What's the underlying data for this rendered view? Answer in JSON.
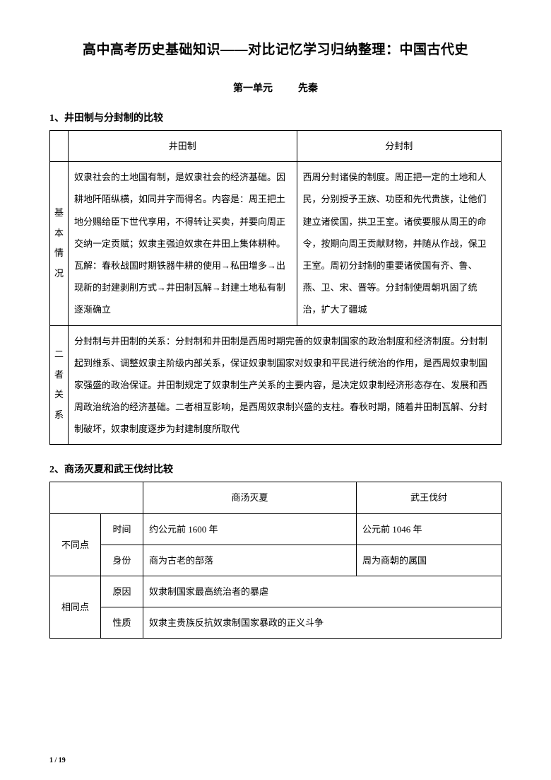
{
  "title": "高中高考历史基础知识——对比记忆学习归纳整理：中国古代史",
  "unit_prefix": "第一单元",
  "unit_name": "先秦",
  "section1": {
    "heading": "1、井田制与分封制的比较",
    "col1": "井田制",
    "col2": "分封制",
    "row1_label": "基本情况",
    "row1_c1": "奴隶社会的土地国有制，是奴隶社会的经济基础。因耕地阡陌纵横，如同井字而得名。内容是：周王把土地分赐给臣下世代享用，不得转让买卖，并要向周正交纳一定贡赋；奴隶主强迫奴隶在井田上集体耕种。瓦解：春秋战国时期铁器牛耕的使用→私田增多→出现新的封建剥削方式→井田制瓦解→封建土地私有制逐渐确立",
    "row1_c2": "西周分封诸侯的制度。周正把一定的土地和人民，分别授予王族、功臣和先代贵族，让他们建立诸侯国，拱卫王室。诸侯要服从周王的命令，按期向周王贡献财物，并随从作战，保卫王室。周初分封制的重要诸侯国有齐、鲁、燕、卫、宋、晋等。分封制使周朝巩固了统治，扩大了疆城",
    "row2_label": "二者关系",
    "row2_text": "分封制与井田制的关系：分封制和井田制是西周时期完善的奴隶制国家的政治制度和经济制度。分封制起到维系、调整奴隶主阶级内部关系，保证奴隶制国家对奴隶和平民进行统治的作用，是西周奴隶制国家强盛的政治保证。井田制规定了奴隶制生产关系的主要内容，是决定奴隶制经济形态存在、发展和西周政治统治的经济基础。二者相互影响，是西周奴隶制兴盛的支柱。春秋时期，随着井田制瓦解、分封制破坏，奴隶制度逐步为封建制度所取代"
  },
  "section2": {
    "heading": "2、商汤灭夏和武王伐纣比较",
    "col1": "商汤灭夏",
    "col2": "武王伐纣",
    "diff_label": "不同点",
    "same_label": "相同点",
    "r_time": "时间",
    "r_time_c1": "约公元前 1600 年",
    "r_time_c2": "公元前 1046 年",
    "r_id": "身份",
    "r_id_c1": "商为古老的部落",
    "r_id_c2": "周为商朝的属国",
    "r_cause": "原因",
    "r_cause_v": "奴隶制国家最高统治者的暴虐",
    "r_nature": "性质",
    "r_nature_v": "奴隶主贵族反抗奴隶制国家暴政的正义斗争"
  },
  "footer": "1 / 19"
}
